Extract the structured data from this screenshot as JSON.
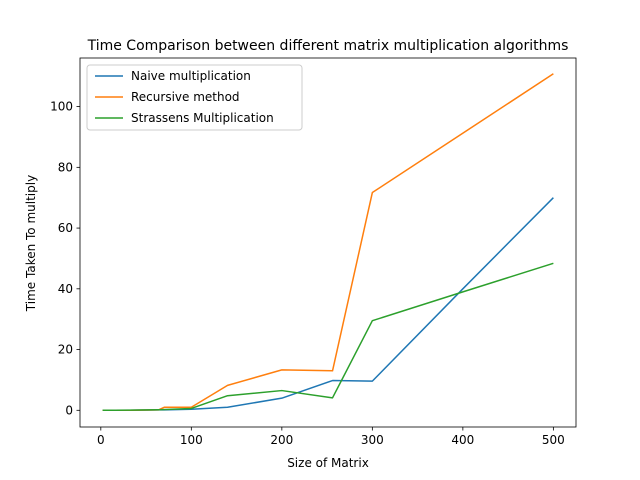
{
  "chart_data": {
    "type": "line",
    "title": "Time Comparison between different matrix multiplication algorithms",
    "xlabel": "Size of Matrix",
    "ylabel": "Time Taken To multiply",
    "xlim": [
      -23,
      525
    ],
    "ylim": [
      -5.5,
      116
    ],
    "xticks": [
      0,
      100,
      200,
      300,
      400,
      500
    ],
    "yticks": [
      0,
      20,
      40,
      60,
      80,
      100
    ],
    "grid": false,
    "legend_position": "upper-left",
    "series": [
      {
        "name": "Naive multiplication",
        "color": "#1f77b4",
        "x": [
          2,
          4,
          8,
          16,
          32,
          64,
          70,
          100,
          140,
          200,
          256,
          300,
          400,
          500
        ],
        "y": [
          0.0,
          0.0,
          0.0,
          0.0,
          0.01,
          0.12,
          0.15,
          0.35,
          1.0,
          4.0,
          9.8,
          9.6,
          40.0,
          70.0
        ]
      },
      {
        "name": "Recursive method",
        "color": "#ff7f0e",
        "x": [
          2,
          4,
          8,
          16,
          32,
          64,
          70,
          100,
          140,
          200,
          256,
          300,
          500
        ],
        "y": [
          0.0,
          0.0,
          0.0,
          0.0,
          0.02,
          0.15,
          1.0,
          1.0,
          8.2,
          13.3,
          13.0,
          71.7,
          110.8
        ]
      },
      {
        "name": "Strassens Multiplication",
        "color": "#2ca02c",
        "x": [
          2,
          4,
          8,
          16,
          32,
          64,
          100,
          140,
          200,
          256,
          300,
          400,
          500
        ],
        "y": [
          0.0,
          0.0,
          0.0,
          0.0,
          0.05,
          0.2,
          0.6,
          4.8,
          6.5,
          4.1,
          29.5,
          39.0,
          48.4
        ]
      }
    ]
  }
}
